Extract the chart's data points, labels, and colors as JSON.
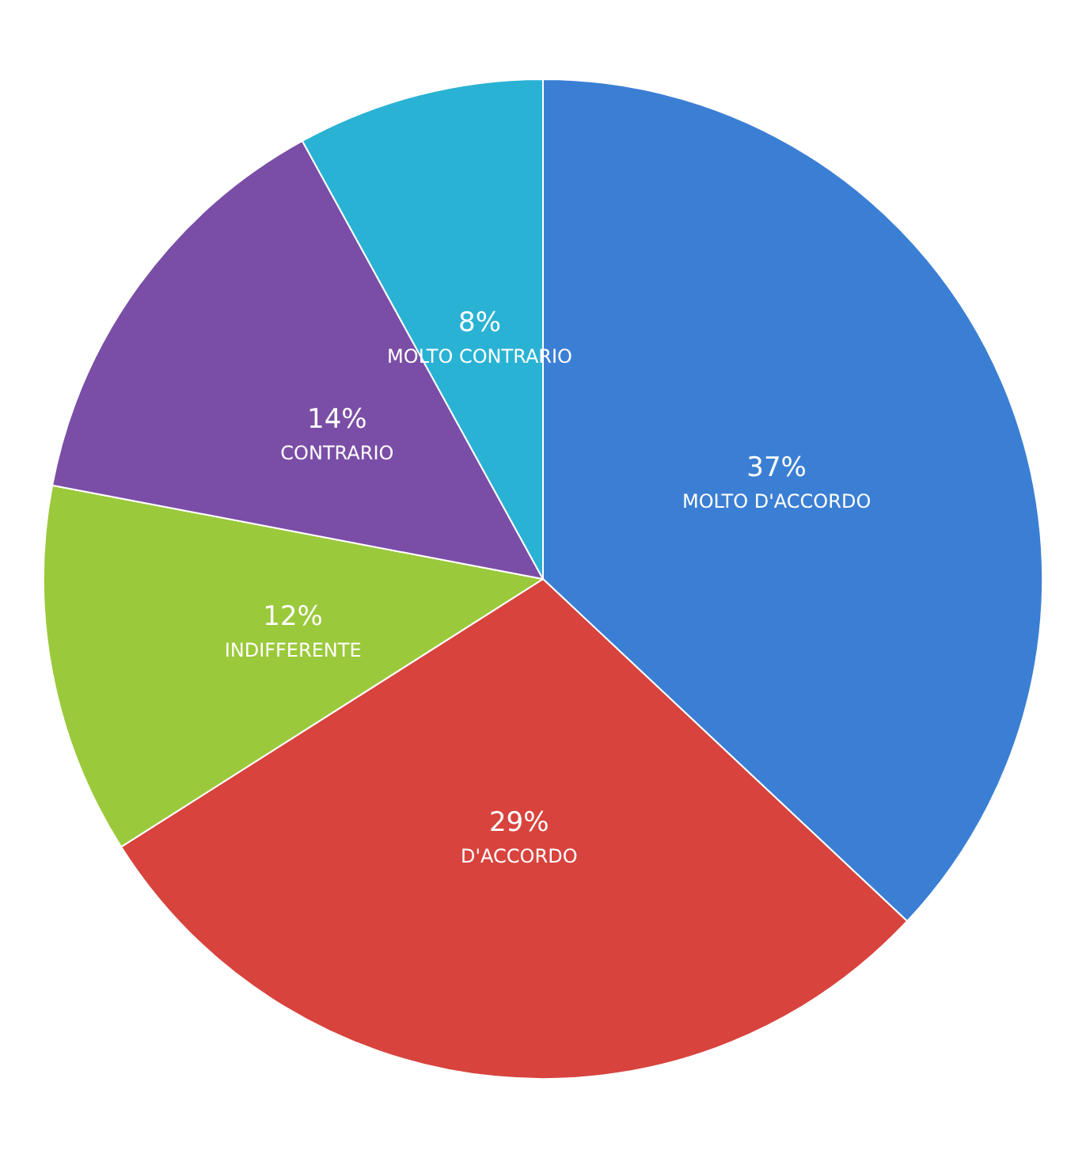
{
  "chart_data": {
    "type": "pie",
    "categories": [
      "MOLTO D'ACCORDO",
      "D'ACCORDO",
      "INDIFFERENTE",
      "CONTRARIO",
      "MOLTO CONTRARIO"
    ],
    "values": [
      37,
      29,
      12,
      14,
      8
    ],
    "value_labels": [
      "37%",
      "29%",
      "12%",
      "14%",
      "8%"
    ],
    "colors": [
      "#3b7fd4",
      "#d8433d",
      "#9bc93c",
      "#7a4ea6",
      "#2ab2d4"
    ],
    "legend": false
  }
}
